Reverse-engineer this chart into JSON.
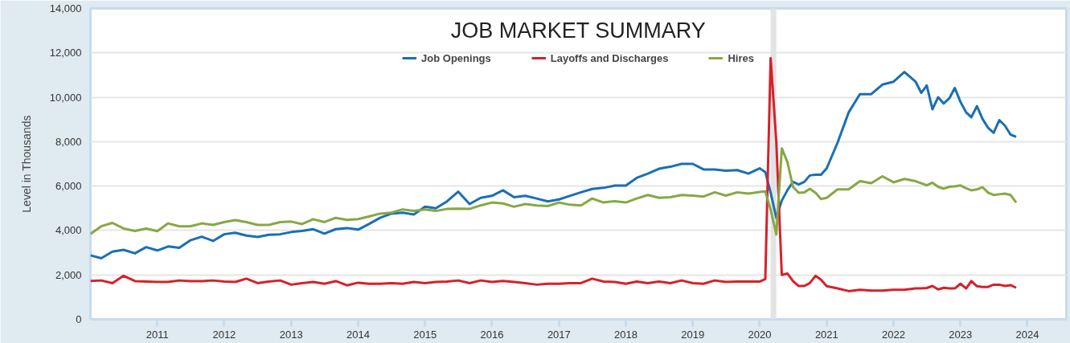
{
  "chart_data": {
    "type": "line",
    "title": "JOB MARKET SUMMARY",
    "ylabel": "Level in Thousands",
    "x": [
      "2010-01",
      "2010-03",
      "2010-05",
      "2010-07",
      "2010-09",
      "2010-11",
      "2011-01",
      "2011-03",
      "2011-05",
      "2011-07",
      "2011-09",
      "2011-11",
      "2012-01",
      "2012-03",
      "2012-05",
      "2012-07",
      "2012-09",
      "2012-11",
      "2013-01",
      "2013-03",
      "2013-05",
      "2013-07",
      "2013-09",
      "2013-11",
      "2014-01",
      "2014-03",
      "2014-05",
      "2014-07",
      "2014-09",
      "2014-11",
      "2015-01",
      "2015-03",
      "2015-05",
      "2015-07",
      "2015-09",
      "2015-11",
      "2016-01",
      "2016-03",
      "2016-05",
      "2016-07",
      "2016-09",
      "2016-11",
      "2017-01",
      "2017-03",
      "2017-05",
      "2017-07",
      "2017-09",
      "2017-11",
      "2018-01",
      "2018-03",
      "2018-05",
      "2018-07",
      "2018-09",
      "2018-11",
      "2019-01",
      "2019-03",
      "2019-05",
      "2019-07",
      "2019-09",
      "2019-11",
      "2020-01",
      "2020-02",
      "2020-03",
      "2020-04",
      "2020-05",
      "2020-06",
      "2020-07",
      "2020-08",
      "2020-09",
      "2020-10",
      "2020-11",
      "2020-12",
      "2021-01",
      "2021-03",
      "2021-05",
      "2021-07",
      "2021-09",
      "2021-11",
      "2022-01",
      "2022-03",
      "2022-05",
      "2022-06",
      "2022-07",
      "2022-08",
      "2022-09",
      "2022-10",
      "2022-11",
      "2022-12",
      "2023-01",
      "2023-02",
      "2023-03",
      "2023-04",
      "2023-05",
      "2023-06",
      "2023-07",
      "2023-08",
      "2023-09",
      "2023-10",
      "2023-11"
    ],
    "series": [
      {
        "name": "Job Openings",
        "color": "#1a6fb5",
        "values": [
          2880,
          2750,
          3050,
          3130,
          2970,
          3250,
          3100,
          3280,
          3220,
          3560,
          3720,
          3530,
          3830,
          3900,
          3770,
          3710,
          3810,
          3830,
          3930,
          3980,
          4060,
          3860,
          4060,
          4110,
          4040,
          4290,
          4570,
          4760,
          4800,
          4720,
          5070,
          5000,
          5310,
          5750,
          5190,
          5470,
          5560,
          5810,
          5500,
          5560,
          5440,
          5310,
          5400,
          5560,
          5720,
          5870,
          5920,
          6020,
          6020,
          6370,
          6560,
          6780,
          6870,
          7000,
          7000,
          6750,
          6750,
          6690,
          6720,
          6560,
          6800,
          6630,
          5700,
          4570,
          5350,
          5820,
          6190,
          6070,
          6190,
          6480,
          6510,
          6510,
          6800,
          7950,
          9320,
          10140,
          10140,
          10570,
          10700,
          11140,
          10700,
          10200,
          10530,
          9460,
          10000,
          9720,
          9950,
          10420,
          9790,
          9320,
          9100,
          9600,
          9030,
          8620,
          8400,
          8970,
          8720,
          8320,
          8220
        ]
      },
      {
        "name": "Layoffs and Discharges",
        "color": "#d7202a",
        "values": [
          1730,
          1750,
          1630,
          1960,
          1720,
          1700,
          1680,
          1680,
          1750,
          1720,
          1720,
          1750,
          1700,
          1680,
          1830,
          1630,
          1700,
          1750,
          1560,
          1630,
          1680,
          1600,
          1720,
          1530,
          1650,
          1600,
          1600,
          1630,
          1600,
          1680,
          1630,
          1680,
          1700,
          1750,
          1630,
          1750,
          1680,
          1730,
          1680,
          1630,
          1560,
          1600,
          1600,
          1630,
          1630,
          1830,
          1700,
          1680,
          1600,
          1700,
          1630,
          1700,
          1630,
          1750,
          1630,
          1600,
          1750,
          1680,
          1700,
          1700,
          1700,
          1810,
          11760,
          8000,
          2000,
          2060,
          1720,
          1500,
          1500,
          1630,
          1960,
          1780,
          1490,
          1390,
          1270,
          1330,
          1290,
          1290,
          1330,
          1330,
          1390,
          1390,
          1410,
          1500,
          1350,
          1420,
          1390,
          1390,
          1600,
          1390,
          1720,
          1490,
          1460,
          1460,
          1560,
          1560,
          1500,
          1540,
          1420
        ]
      },
      {
        "name": "Hires",
        "color": "#86a843",
        "values": [
          3840,
          4190,
          4340,
          4090,
          3980,
          4090,
          3970,
          4320,
          4190,
          4190,
          4320,
          4250,
          4380,
          4470,
          4380,
          4250,
          4250,
          4380,
          4400,
          4290,
          4510,
          4380,
          4570,
          4480,
          4510,
          4630,
          4760,
          4800,
          4950,
          4880,
          4950,
          4880,
          4970,
          4980,
          4970,
          5130,
          5260,
          5220,
          5070,
          5190,
          5130,
          5100,
          5260,
          5160,
          5130,
          5440,
          5260,
          5320,
          5260,
          5440,
          5600,
          5470,
          5500,
          5600,
          5570,
          5530,
          5720,
          5570,
          5720,
          5660,
          5730,
          5760,
          4940,
          3820,
          7700,
          7070,
          5970,
          5700,
          5720,
          5880,
          5700,
          5420,
          5470,
          5850,
          5850,
          6220,
          6130,
          6440,
          6170,
          6320,
          6220,
          6130,
          6040,
          6150,
          5970,
          5880,
          5970,
          5990,
          6030,
          5900,
          5810,
          5850,
          5950,
          5700,
          5600,
          5630,
          5660,
          5600,
          5260
        ]
      }
    ],
    "xlim": [
      "2010-01",
      "2024-08"
    ],
    "xticks": [
      "2011",
      "2012",
      "2013",
      "2014",
      "2015",
      "2016",
      "2017",
      "2018",
      "2019",
      "2020",
      "2021",
      "2022",
      "2023",
      "2024"
    ],
    "ylim": [
      0,
      14000
    ],
    "yticks": [
      {
        "value": 0,
        "label": "0"
      },
      {
        "value": 2000,
        "label": "2,000"
      },
      {
        "value": 4000,
        "label": "4,000"
      },
      {
        "value": 6000,
        "label": "6,000"
      },
      {
        "value": 8000,
        "label": "8,000"
      },
      {
        "value": 10000,
        "label": "10,000"
      },
      {
        "value": 12000,
        "label": "12,000"
      },
      {
        "value": 14000,
        "label": "14,000"
      }
    ],
    "bands": [
      {
        "axis": "x",
        "from": "2020-03",
        "to": "2020-04",
        "color": "#e3e3e3"
      }
    ],
    "grid": "y",
    "legend": "top",
    "marker": "none",
    "line_style": "solid"
  }
}
